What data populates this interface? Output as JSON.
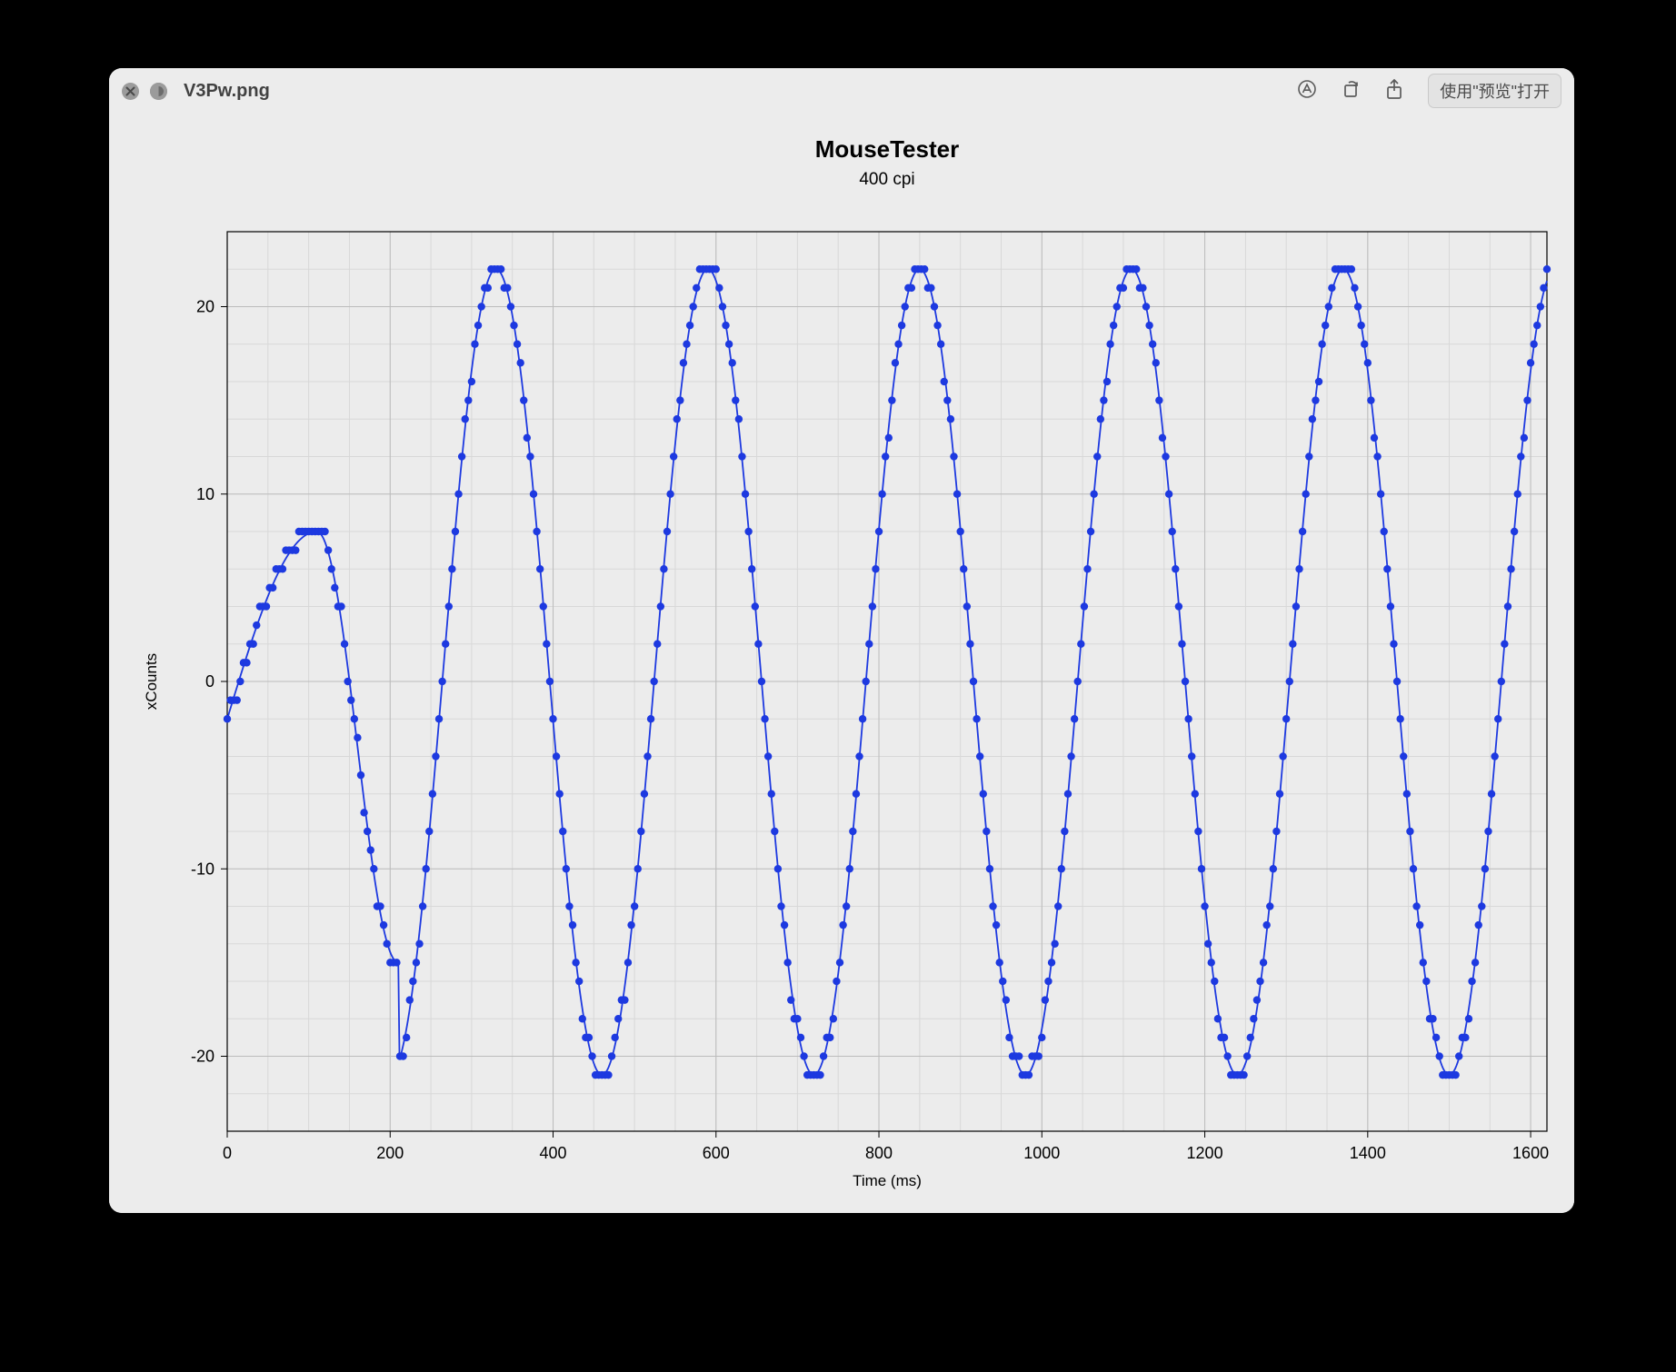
{
  "window": {
    "filename": "V3Pw.png",
    "open_with_label": "使用\"预览\"打开"
  },
  "chart": {
    "type": "scatter_with_line",
    "title": "MouseTester",
    "subtitle": "400 cpi",
    "xlabel": "Time (ms)",
    "ylabel": "xCounts",
    "xlim": [
      0,
      1620
    ],
    "ylim": [
      -24,
      24
    ],
    "xticks": [
      0,
      200,
      400,
      600,
      800,
      1000,
      1200,
      1400,
      1600
    ],
    "yticks": [
      -20,
      -10,
      0,
      10,
      20
    ],
    "x_minor_step": 50,
    "y_minor_step": 2,
    "background_color": "#ececec",
    "grid_color_minor": "#d8d8d8",
    "grid_color_major": "#bcbcbc",
    "axis_color": "#000000",
    "line_color": "#1d39e0",
    "marker_color": "#1d39e0",
    "marker_radius": 4.2,
    "line_width": 1.8,
    "title_fontsize": 26,
    "subtitle_fontsize": 19,
    "label_fontsize": 17,
    "tick_fontsize": 18,
    "sine": {
      "initial_ramp_end_ms": 220,
      "initial_peak_ms": 110,
      "initial_peak_val": 8,
      "initial_trough_ms": 210,
      "initial_trough_val": -15,
      "period_ms": 260,
      "peak_amplitude": 22,
      "trough_amplitude": -21,
      "sample_step_ms": 4
    }
  }
}
